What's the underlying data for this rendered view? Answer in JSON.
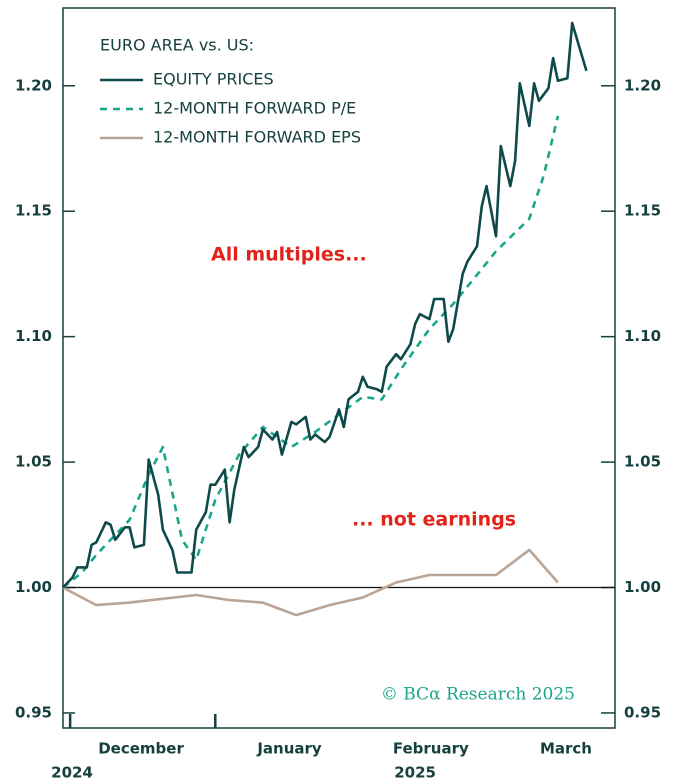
{
  "chart_data": {
    "type": "line",
    "title": "EURO AREA vs. US:",
    "annotations": [
      "All multiples...",
      "... not earnings"
    ],
    "source": "© BCα Research 2025",
    "xlim": [
      0,
      116
    ],
    "xticks": [
      1.5,
      32
    ],
    "xlabels": [
      {
        "value": 16.4,
        "label": "December"
      },
      {
        "value": 47.6,
        "label": "January"
      },
      {
        "value": 77.3,
        "label": "February"
      },
      {
        "value": 105.7,
        "label": "March"
      }
    ],
    "year_labels": [
      {
        "value": 1.9,
        "label": "2024"
      },
      {
        "value": 74,
        "label": "2025"
      }
    ],
    "ylim": [
      0.944,
      1.231
    ],
    "yticks": [
      0.95,
      {
        "value": 1.0,
        "label": "1.00"
      },
      1.05,
      {
        "value": 1.1,
        "label": "1.10"
      },
      1.15,
      {
        "value": 1.2,
        "label": "1.20"
      }
    ],
    "y2lim": [
      0.944,
      1.231
    ],
    "y2ticks": [
      0.95,
      {
        "value": 1.0,
        "label": "1.00"
      },
      1.05,
      {
        "value": 1.1,
        "label": "1.10"
      },
      1.15,
      {
        "value": 1.2,
        "label": "1.20"
      }
    ],
    "reference_line": 1.0,
    "series": [
      {
        "name": "EQUITY PRICES",
        "color": "#0e4a4a",
        "dash": false,
        "x": [
          0,
          2,
          3,
          5,
          6,
          7,
          9,
          10,
          11,
          13,
          14,
          15,
          17,
          18,
          20,
          21,
          23,
          24,
          26,
          27,
          28,
          30,
          31,
          32,
          34,
          35,
          36,
          38,
          39,
          41,
          42,
          44,
          45,
          46,
          48,
          49,
          51,
          52,
          53,
          55,
          56,
          58,
          59,
          60,
          62,
          63,
          64,
          66,
          67,
          68,
          70,
          71,
          73,
          74,
          75,
          77,
          78,
          80,
          81,
          82,
          84,
          85,
          87,
          88,
          89,
          91,
          92,
          94,
          95,
          96,
          98,
          99,
          100,
          102,
          103,
          104,
          106,
          107,
          110
        ],
        "values": [
          1.0,
          1.004,
          1.008,
          1.008,
          1.017,
          1.018,
          1.026,
          1.025,
          1.019,
          1.024,
          1.024,
          1.016,
          1.017,
          1.051,
          1.037,
          1.023,
          1.015,
          1.006,
          1.006,
          1.006,
          1.023,
          1.03,
          1.041,
          1.041,
          1.047,
          1.026,
          1.039,
          1.056,
          1.052,
          1.056,
          1.063,
          1.059,
          1.062,
          1.053,
          1.066,
          1.065,
          1.068,
          1.059,
          1.061,
          1.058,
          1.06,
          1.071,
          1.064,
          1.075,
          1.078,
          1.084,
          1.08,
          1.079,
          1.078,
          1.088,
          1.093,
          1.091,
          1.097,
          1.105,
          1.109,
          1.107,
          1.115,
          1.115,
          1.098,
          1.103,
          1.125,
          1.13,
          1.136,
          1.152,
          1.16,
          1.14,
          1.176,
          1.16,
          1.17,
          1.201,
          1.184,
          1.201,
          1.194,
          1.199,
          1.211,
          1.202,
          1.203,
          1.225,
          1.206
        ]
      },
      {
        "name": "12-MONTH FORWARD P/E",
        "color": "#1aa58a",
        "dash": true,
        "x": [
          0,
          4,
          7,
          14,
          18,
          21,
          25,
          28,
          32,
          37,
          42,
          48,
          53,
          58,
          63,
          67,
          71,
          77,
          82,
          88,
          91,
          98,
          101,
          104
        ],
        "values": [
          1.0,
          1.006,
          1.013,
          1.027,
          1.045,
          1.056,
          1.019,
          1.011,
          1.035,
          1.053,
          1.064,
          1.056,
          1.062,
          1.069,
          1.076,
          1.075,
          1.087,
          1.103,
          1.113,
          1.127,
          1.134,
          1.147,
          1.164,
          1.188
        ]
      },
      {
        "name": "12-MONTH FORWARD EPS",
        "color": "#b9a597",
        "dash": false,
        "x": [
          0,
          7,
          14,
          28,
          35,
          42,
          49,
          56,
          63,
          70,
          77,
          84,
          91,
          98,
          104
        ],
        "values": [
          1.0,
          0.993,
          0.994,
          0.997,
          0.995,
          0.994,
          0.989,
          0.993,
          0.996,
          1.002,
          1.005,
          1.005,
          1.005,
          1.015,
          1.002
        ]
      }
    ]
  }
}
